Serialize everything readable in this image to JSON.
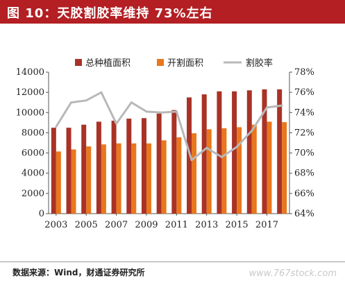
{
  "title": "图 10：天胶割胶率维持 73%左右",
  "source": "数据来源：Wind，财通证券研究所",
  "watermark": "www.767stock.com",
  "colors": {
    "title_bg": "#b31f23",
    "total_area": "#a93226",
    "tapping_area": "#e8771e",
    "tapping_rate": "#b8b8b8"
  },
  "chart_data": {
    "type": "bar",
    "years": [
      2003,
      2004,
      2005,
      2006,
      2007,
      2008,
      2009,
      2010,
      2011,
      2012,
      2013,
      2014,
      2015,
      2016,
      2017,
      2018
    ],
    "series": [
      {
        "name": "总种植面积",
        "type": "bar",
        "axis": "left",
        "values": [
          8500,
          8500,
          8800,
          9100,
          9200,
          9400,
          9450,
          9900,
          10250,
          11500,
          11800,
          12100,
          12100,
          12200,
          12300,
          12300
        ]
      },
      {
        "name": "开割面积",
        "type": "bar",
        "axis": "left",
        "values": [
          6150,
          6350,
          6650,
          6850,
          6950,
          6950,
          6950,
          7250,
          7550,
          7950,
          8350,
          8450,
          8550,
          8800,
          9100,
          9050
        ]
      },
      {
        "name": "割胶率",
        "type": "line",
        "axis": "right",
        "values": [
          72.6,
          75.0,
          75.2,
          76.0,
          72.9,
          75.0,
          74.1,
          74.0,
          74.1,
          69.3,
          70.5,
          69.6,
          70.6,
          72.2,
          74.5,
          74.7
        ]
      }
    ],
    "x_tick_labels": [
      "2003",
      "2005",
      "2007",
      "2009",
      "2011",
      "2013",
      "2015",
      "2017"
    ],
    "y_left": {
      "min": 0,
      "max": 14000,
      "step": 2000,
      "ticks": [
        "0",
        "2000",
        "4000",
        "6000",
        "8000",
        "10000",
        "12000",
        "14000"
      ]
    },
    "y_right": {
      "min": 64,
      "max": 78,
      "step": 2,
      "ticks": [
        "64%",
        "66%",
        "68%",
        "70%",
        "72%",
        "74%",
        "76%",
        "78%"
      ]
    },
    "legend_position": "top",
    "grid": false
  }
}
